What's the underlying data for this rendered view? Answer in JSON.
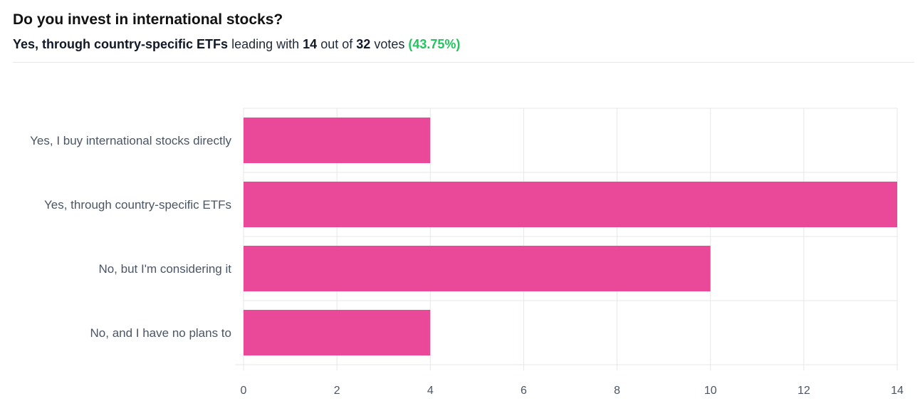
{
  "header": {
    "title": "Do you invest in international stocks?",
    "leader_option": "Yes, through country-specific ETFs",
    "leading_with_text": "leading with",
    "leader_votes": "14",
    "out_of_text": "out of",
    "total_votes": "32",
    "votes_text": "votes",
    "leader_percent": "(43.75%)"
  },
  "colors": {
    "bar": "#ea4898",
    "grid": "#e5e7eb",
    "label": "#4b5563",
    "accent_green": "#22c55e"
  },
  "chart_data": {
    "type": "bar",
    "orientation": "horizontal",
    "categories": [
      "Yes, I buy international stocks directly",
      "Yes, through country-specific ETFs",
      "No, but I'm considering it",
      "No, and I have no plans to"
    ],
    "values": [
      4,
      14,
      10,
      4
    ],
    "xlim": [
      0,
      14
    ],
    "xticks": [
      0,
      2,
      4,
      6,
      8,
      10,
      12,
      14
    ],
    "grid": true,
    "legend": "none",
    "title": "",
    "xlabel": "",
    "ylabel": ""
  }
}
